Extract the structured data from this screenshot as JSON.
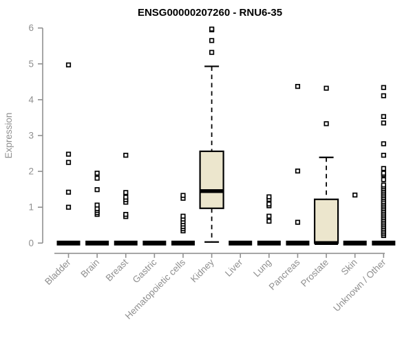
{
  "chart_data": {
    "type": "boxplot",
    "title": "ENSG00000207260 - RNU6-35",
    "ylabel": "Expression",
    "ylim": [
      0,
      6
    ],
    "yticks": [
      0,
      1,
      2,
      3,
      4,
      5,
      6
    ],
    "grid": false,
    "legend": "none",
    "axis_color": "#8f8f8f",
    "text_color": "#8f8f8f",
    "box_fill": "#ECE6CD",
    "box_stroke": "#000000",
    "outlier_fill": "#ffffff",
    "categories": [
      "Bladder",
      "Brain",
      "Breast",
      "Gastric",
      "Hematopoietic cells",
      "Kidney",
      "Liver",
      "Lung",
      "Pancreas",
      "Prostate",
      "Skin",
      "Unknown / Other"
    ],
    "boxes": [
      {
        "category": "Bladder",
        "q1": 0,
        "median": 0,
        "q3": 0,
        "whisker_low": 0,
        "whisker_high": 0,
        "outliers": [
          1.0,
          1.42,
          2.25,
          2.48,
          4.97
        ]
      },
      {
        "category": "Brain",
        "q1": 0,
        "median": 0,
        "q3": 0,
        "whisker_low": 0,
        "whisker_high": 0,
        "outliers": [
          0.8,
          0.85,
          0.91,
          0.96,
          1.06,
          1.49,
          1.81,
          1.95
        ]
      },
      {
        "category": "Breast",
        "q1": 0,
        "median": 0,
        "q3": 0,
        "whisker_low": 0,
        "whisker_high": 0,
        "outliers": [
          0.74,
          0.8,
          1.14,
          1.21,
          1.28,
          1.41,
          2.45
        ]
      },
      {
        "category": "Gastric",
        "q1": 0,
        "median": 0,
        "q3": 0,
        "whisker_low": 0,
        "whisker_high": 0,
        "outliers": []
      },
      {
        "category": "Hematopoietic cells",
        "q1": 0,
        "median": 0,
        "q3": 0,
        "whisker_low": 0,
        "whisker_high": 0,
        "outliers": [
          0.34,
          0.4,
          0.46,
          0.53,
          0.6,
          0.67,
          0.75,
          1.25,
          1.33
        ]
      },
      {
        "category": "Kidney",
        "q1": 0.97,
        "median": 1.45,
        "q3": 2.56,
        "whisker_low": 0.03,
        "whisker_high": 4.93,
        "outliers": [
          5.32,
          5.65,
          5.95,
          5.97
        ]
      },
      {
        "category": "Liver",
        "q1": 0,
        "median": 0,
        "q3": 0,
        "whisker_low": 0,
        "whisker_high": 0,
        "outliers": []
      },
      {
        "category": "Lung",
        "q1": 0,
        "median": 0,
        "q3": 0,
        "whisker_low": 0,
        "whisker_high": 0,
        "outliers": [
          0.61,
          0.75,
          1.04,
          1.09,
          1.22,
          1.29
        ]
      },
      {
        "category": "Pancreas",
        "q1": 0,
        "median": 0,
        "q3": 0,
        "whisker_low": 0,
        "whisker_high": 0,
        "outliers": [
          0.58,
          2.01,
          4.37
        ]
      },
      {
        "category": "Prostate",
        "q1": 0,
        "median": 0,
        "q3": 1.22,
        "whisker_low": 0,
        "whisker_high": 2.39,
        "outliers": [
          3.33,
          4.32
        ]
      },
      {
        "category": "Skin",
        "q1": 0,
        "median": 0,
        "q3": 0,
        "whisker_low": 0,
        "whisker_high": 0,
        "outliers": [
          1.34
        ]
      },
      {
        "category": "Unknown / Other",
        "q1": 0,
        "median": 0,
        "q3": 0,
        "whisker_low": 0,
        "whisker_high": 0,
        "outliers": [
          0.21,
          0.26,
          0.31,
          0.36,
          0.41,
          0.46,
          0.51,
          0.56,
          0.61,
          0.66,
          0.71,
          0.76,
          0.81,
          0.86,
          0.91,
          0.96,
          1.01,
          1.06,
          1.11,
          1.16,
          1.22,
          1.27,
          1.32,
          1.37,
          1.42,
          1.47,
          1.52,
          1.57,
          1.62,
          1.77,
          1.91,
          1.95,
          2.08,
          2.45,
          2.77,
          3.35,
          3.53,
          4.11,
          4.34
        ]
      }
    ]
  }
}
